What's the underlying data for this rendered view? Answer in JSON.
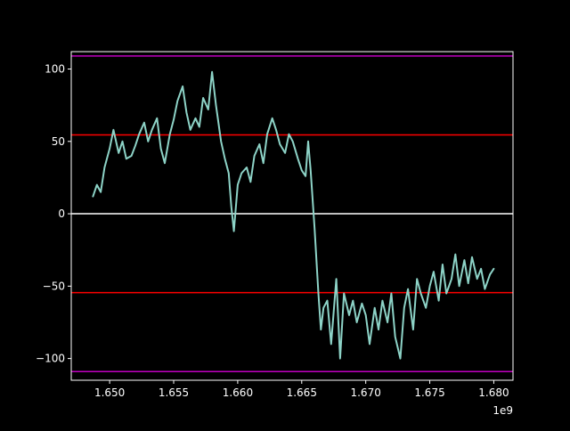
{
  "chart_data": {
    "type": "line",
    "title": "",
    "xlabel": "",
    "ylabel": "",
    "x_offset_text": "1e9",
    "xlim": [
      1.647,
      1.6815
    ],
    "ylim": [
      -115,
      112
    ],
    "xticks": [
      1.65,
      1.655,
      1.66,
      1.665,
      1.67,
      1.675,
      1.68
    ],
    "xtick_labels": [
      "1.650",
      "1.655",
      "1.660",
      "1.665",
      "1.670",
      "1.675",
      "1.680"
    ],
    "yticks": [
      100,
      50,
      0,
      -50,
      -100
    ],
    "ytick_labels": [
      "100",
      "50",
      "0",
      "−50",
      "−100"
    ],
    "grid": false,
    "background": "#000000",
    "axes_color": "#ffffff",
    "hlines": [
      {
        "y": 109,
        "color": "#bf00bf"
      },
      {
        "y": 54.5,
        "color": "#ff0000"
      },
      {
        "y": 0,
        "color": "#ffffff"
      },
      {
        "y": -54.5,
        "color": "#ff0000"
      },
      {
        "y": -109,
        "color": "#bf00bf"
      }
    ],
    "series": [
      {
        "color": "#8dd3c7",
        "x": [
          1.6487,
          1.649,
          1.6493,
          1.6496,
          1.65,
          1.6503,
          1.6507,
          1.651,
          1.6513,
          1.6517,
          1.652,
          1.6523,
          1.6527,
          1.653,
          1.6533,
          1.6537,
          1.654,
          1.6543,
          1.6547,
          1.655,
          1.6553,
          1.6557,
          1.656,
          1.6563,
          1.6567,
          1.657,
          1.6573,
          1.6577,
          1.658,
          1.6583,
          1.6587,
          1.659,
          1.6593,
          1.6595,
          1.6597,
          1.66,
          1.6603,
          1.6607,
          1.661,
          1.6613,
          1.6617,
          1.662,
          1.6623,
          1.6627,
          1.663,
          1.6633,
          1.6637,
          1.664,
          1.6643,
          1.6647,
          1.665,
          1.6653,
          1.6655,
          1.6657,
          1.666,
          1.6663,
          1.6665,
          1.6667,
          1.667,
          1.6673,
          1.6677,
          1.668,
          1.6683,
          1.6687,
          1.669,
          1.6693,
          1.6697,
          1.67,
          1.6703,
          1.6707,
          1.671,
          1.6713,
          1.6717,
          1.672,
          1.6723,
          1.6727,
          1.673,
          1.6733,
          1.6737,
          1.674,
          1.6743,
          1.6747,
          1.675,
          1.6753,
          1.6757,
          1.676,
          1.6763,
          1.6767,
          1.677,
          1.6773,
          1.6777,
          1.678,
          1.6783,
          1.6787,
          1.679,
          1.6793,
          1.6797,
          1.68
        ],
        "y": [
          12,
          20,
          15,
          32,
          45,
          58,
          42,
          50,
          38,
          40,
          47,
          55,
          63,
          50,
          58,
          66,
          45,
          35,
          55,
          65,
          78,
          88,
          70,
          58,
          66,
          60,
          80,
          72,
          98,
          75,
          50,
          38,
          28,
          5,
          -12,
          20,
          28,
          32,
          22,
          40,
          48,
          35,
          55,
          66,
          58,
          48,
          42,
          55,
          50,
          38,
          30,
          26,
          50,
          30,
          -10,
          -55,
          -80,
          -65,
          -60,
          -90,
          -45,
          -100,
          -55,
          -70,
          -60,
          -75,
          -62,
          -70,
          -90,
          -65,
          -80,
          -60,
          -75,
          -55,
          -85,
          -100,
          -65,
          -52,
          -80,
          -45,
          -55,
          -65,
          -50,
          -40,
          -60,
          -35,
          -55,
          -45,
          -28,
          -50,
          -32,
          -48,
          -30,
          -45,
          -38,
          -52,
          -42,
          -38
        ]
      }
    ]
  }
}
